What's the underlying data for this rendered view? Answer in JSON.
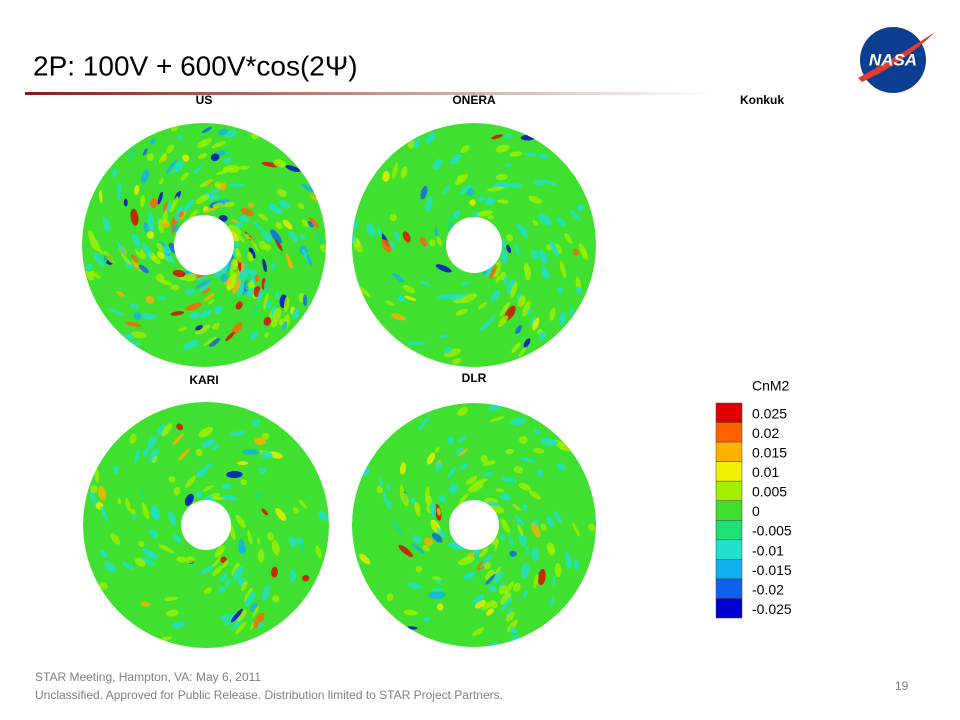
{
  "header": {
    "title": "2P: 100V + 600V*cos(2Ψ)",
    "logo": "NASA"
  },
  "panels": [
    {
      "label": "US"
    },
    {
      "label": "ONERA"
    },
    {
      "label": "Konkuk"
    },
    {
      "label": "KARI"
    },
    {
      "label": "DLR"
    }
  ],
  "colorbar": {
    "title": "CnM2",
    "levels": [
      {
        "label": "0.025",
        "color": "#e00000"
      },
      {
        "label": "0.02",
        "color": "#ff6000"
      },
      {
        "label": "0.015",
        "color": "#ffb000"
      },
      {
        "label": "0.01",
        "color": "#f0f000"
      },
      {
        "label": "0.005",
        "color": "#a0f000"
      },
      {
        "label": "0",
        "color": "#40e030"
      },
      {
        "label": "-0.005",
        "color": "#20e070"
      },
      {
        "label": "-0.01",
        "color": "#20e0d0"
      },
      {
        "label": "-0.015",
        "color": "#10b0f0"
      },
      {
        "label": "-0.02",
        "color": "#1060f0"
      },
      {
        "label": "-0.025",
        "color": "#0000d0"
      }
    ]
  },
  "footer": {
    "lines": [
      "STAR Meeting, Hampton, VA: May 6, 2011",
      "Unclassified. Approved for Public Release. Distribution limited to STAR Project Partners."
    ],
    "page": "19"
  }
}
